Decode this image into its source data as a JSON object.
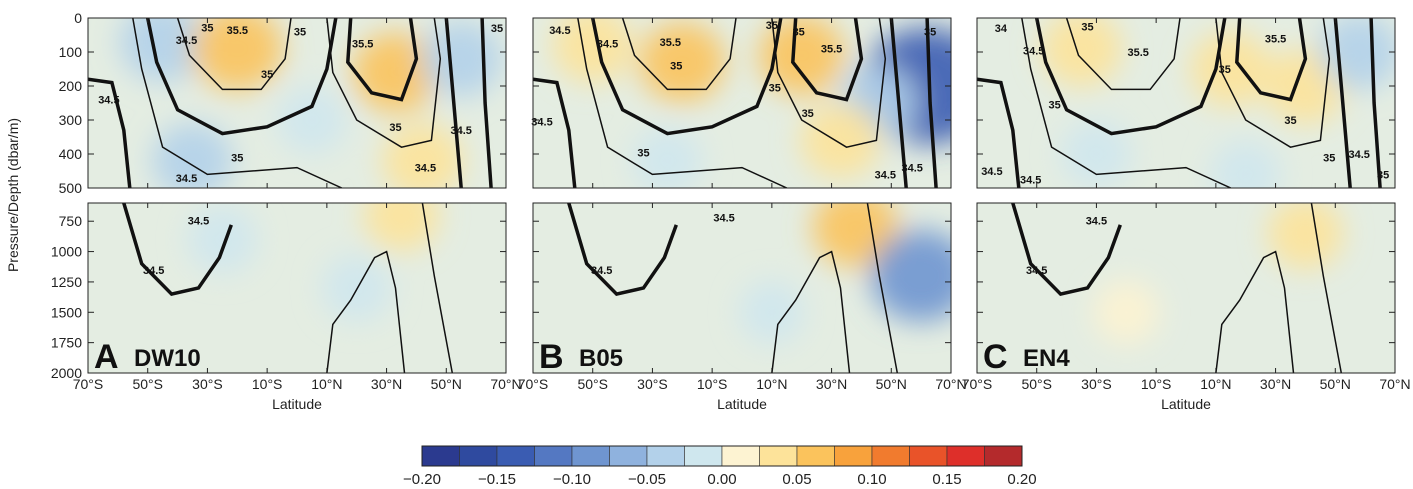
{
  "chart_data": {
    "type": "heatmap",
    "y_axis_label": "Pressure/Depth (dbar/m)",
    "x_axis": {
      "label": "Latitude",
      "ticks": [
        "70°S",
        "50°S",
        "30°S",
        "10°S",
        "10°N",
        "30°N",
        "50°N",
        "70°N"
      ],
      "values": [
        -70,
        -50,
        -30,
        -10,
        10,
        30,
        50,
        70
      ],
      "range": [
        -70,
        70
      ]
    },
    "upper_y_axis": {
      "ticks": [
        "0",
        "100",
        "200",
        "300",
        "400",
        "500"
      ],
      "values": [
        0,
        100,
        200,
        300,
        400,
        500
      ],
      "range": [
        0,
        500
      ]
    },
    "lower_y_axis": {
      "ticks": [
        "750",
        "1000",
        "1250",
        "1500",
        "1750",
        "2000"
      ],
      "values": [
        750,
        1000,
        1250,
        1500,
        1750,
        2000
      ],
      "range": [
        600,
        2000
      ]
    },
    "panels": [
      {
        "letter": "A",
        "name": "DW10",
        "anomalies": [
          {
            "lat": -45,
            "depth": 70,
            "value": -0.05
          },
          {
            "lat": -20,
            "depth": 90,
            "value": 0.06
          },
          {
            "lat": 33,
            "depth": 160,
            "value": 0.05
          },
          {
            "lat": 55,
            "depth": 120,
            "value": -0.04
          },
          {
            "lat": -35,
            "depth": 420,
            "value": -0.04
          },
          {
            "lat": 42,
            "depth": 420,
            "value": 0.04
          },
          {
            "lat": 5,
            "depth": 300,
            "value": -0.02
          },
          {
            "lat": -25,
            "depth": 900,
            "value": -0.02
          },
          {
            "lat": 35,
            "depth": 700,
            "value": 0.03
          },
          {
            "lat": 20,
            "depth": 1300,
            "value": -0.02
          }
        ],
        "contour_labels": [
          {
            "text": "35.5",
            "lat": -20,
            "depth": 35
          },
          {
            "text": "34.5",
            "lat": -37,
            "depth": 65
          },
          {
            "text": "35",
            "lat": -30,
            "depth": 28
          },
          {
            "text": "34.5",
            "lat": -63,
            "depth": 240
          },
          {
            "text": "35",
            "lat": -10,
            "depth": 165
          },
          {
            "text": "35",
            "lat": -20,
            "depth": 410
          },
          {
            "text": "34.5",
            "lat": -37,
            "depth": 470
          },
          {
            "text": "35",
            "lat": 1,
            "depth": 40
          },
          {
            "text": "35.5",
            "lat": 22,
            "depth": 75
          },
          {
            "text": "35",
            "lat": 33,
            "depth": 320
          },
          {
            "text": "34.5",
            "lat": 43,
            "depth": 440
          },
          {
            "text": "34.5",
            "lat": 55,
            "depth": 330
          },
          {
            "text": "35",
            "lat": 67,
            "depth": 30
          },
          {
            "text": "34.5",
            "lat": -33,
            "depth": 745
          },
          {
            "text": "34.5",
            "lat": -48,
            "depth": 1150
          }
        ]
      },
      {
        "letter": "B",
        "name": "B05",
        "anomalies": [
          {
            "lat": -50,
            "depth": 80,
            "value": 0.04
          },
          {
            "lat": -20,
            "depth": 130,
            "value": 0.05
          },
          {
            "lat": 20,
            "depth": 110,
            "value": 0.05
          },
          {
            "lat": 62,
            "depth": 200,
            "value": -0.14
          },
          {
            "lat": 45,
            "depth": 250,
            "value": -0.04
          },
          {
            "lat": -25,
            "depth": 420,
            "value": -0.02
          },
          {
            "lat": 33,
            "depth": 360,
            "value": 0.04
          },
          {
            "lat": 38,
            "depth": 800,
            "value": 0.05
          },
          {
            "lat": 60,
            "depth": 1200,
            "value": -0.08
          },
          {
            "lat": 10,
            "depth": 1500,
            "value": -0.01
          }
        ],
        "contour_labels": [
          {
            "text": "34.5",
            "lat": -61,
            "depth": 35
          },
          {
            "text": "34.5",
            "lat": -45,
            "depth": 75
          },
          {
            "text": "35.5",
            "lat": -24,
            "depth": 70
          },
          {
            "text": "35",
            "lat": -22,
            "depth": 140
          },
          {
            "text": "35",
            "lat": 10,
            "depth": 20
          },
          {
            "text": "35",
            "lat": 19,
            "depth": 40
          },
          {
            "text": "35.5",
            "lat": 30,
            "depth": 90
          },
          {
            "text": "35",
            "lat": 11,
            "depth": 205
          },
          {
            "text": "35",
            "lat": 22,
            "depth": 280
          },
          {
            "text": "34.5",
            "lat": -67,
            "depth": 305
          },
          {
            "text": "35",
            "lat": -33,
            "depth": 395
          },
          {
            "text": "34.5",
            "lat": 48,
            "depth": 460
          },
          {
            "text": "34.5",
            "lat": 57,
            "depth": 440
          },
          {
            "text": "35",
            "lat": 63,
            "depth": 40
          },
          {
            "text": "34.5",
            "lat": -6,
            "depth": 720
          },
          {
            "text": "34.5",
            "lat": -47,
            "depth": 1150
          }
        ]
      },
      {
        "letter": "C",
        "name": "EN4",
        "anomalies": [
          {
            "lat": -35,
            "depth": 90,
            "value": 0.04
          },
          {
            "lat": 15,
            "depth": 150,
            "value": 0.04
          },
          {
            "lat": 40,
            "depth": 200,
            "value": 0.04
          },
          {
            "lat": 58,
            "depth": 100,
            "value": -0.04
          },
          {
            "lat": -30,
            "depth": 400,
            "value": -0.02
          },
          {
            "lat": 20,
            "depth": 460,
            "value": -0.02
          },
          {
            "lat": 40,
            "depth": 850,
            "value": 0.03
          },
          {
            "lat": -20,
            "depth": 1500,
            "value": 0.01
          }
        ],
        "contour_labels": [
          {
            "text": "34",
            "lat": -62,
            "depth": 30
          },
          {
            "text": "34.5",
            "lat": -51,
            "depth": 95
          },
          {
            "text": "35",
            "lat": -33,
            "depth": 25
          },
          {
            "text": "35.5",
            "lat": -16,
            "depth": 100
          },
          {
            "text": "35",
            "lat": -44,
            "depth": 255
          },
          {
            "text": "35",
            "lat": 13,
            "depth": 150
          },
          {
            "text": "35.5",
            "lat": 30,
            "depth": 60
          },
          {
            "text": "35",
            "lat": 35,
            "depth": 300
          },
          {
            "text": "35",
            "lat": 48,
            "depth": 410
          },
          {
            "text": "34.5",
            "lat": -65,
            "depth": 450
          },
          {
            "text": "34.5",
            "lat": -52,
            "depth": 475
          },
          {
            "text": "34.5",
            "lat": 58,
            "depth": 400
          },
          {
            "text": "35",
            "lat": 66,
            "depth": 460
          },
          {
            "text": "34.5",
            "lat": -30,
            "depth": 745
          },
          {
            "text": "34.5",
            "lat": -50,
            "depth": 1150
          }
        ]
      }
    ],
    "colorbar": {
      "ticks": [
        "−0.20",
        "−0.15",
        "−0.10",
        "−0.05",
        "0.00",
        "0.05",
        "0.10",
        "0.15",
        "0.20"
      ],
      "range": [
        -0.2,
        0.2
      ],
      "colors": [
        "#2b3a8f",
        "#2f4a9f",
        "#3a5cb2",
        "#5478c2",
        "#6f95d0",
        "#8fb2de",
        "#b3d1ea",
        "#cfe7ee",
        "#fdf3d2",
        "#fde39a",
        "#fbc35c",
        "#f8a23c",
        "#f17b2e",
        "#e95329",
        "#de2f2a",
        "#b42a2c"
      ]
    }
  }
}
